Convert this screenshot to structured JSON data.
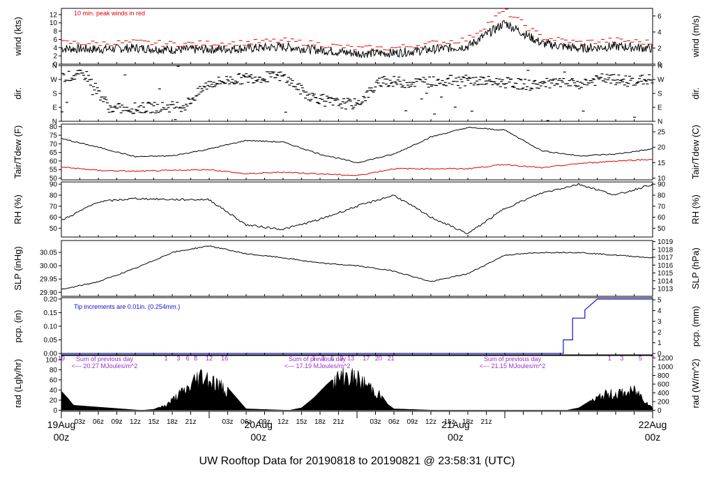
{
  "title": "UW Rooftop Data for 20190818  to  20190821 @ 23:58:31  (UTC)",
  "colors": {
    "title": "#1c1cd0",
    "red": "#e00000",
    "blue": "#1010d0",
    "purple": "#9a2fd0",
    "black": "#000000"
  },
  "xaxis": {
    "hours": [
      "03z",
      "06z",
      "09z",
      "12z",
      "15z",
      "18z",
      "21z",
      "03z",
      "06z",
      "09z",
      "12z",
      "15z",
      "18z",
      "21z",
      "03z",
      "06z",
      "09z",
      "12z",
      "15z",
      "18z",
      "21z"
    ],
    "day_labels": [
      "19Aug",
      "20Aug",
      "21Aug",
      "22Aug"
    ],
    "day_sub": [
      "00z",
      "00z",
      "00z",
      "00z"
    ]
  },
  "chart_data": [
    {
      "type": "line",
      "name": "wind",
      "ylabel_left": "wind (kts)",
      "ylabel_right": "wind (m/s)",
      "yticks_left": [
        "0",
        "2",
        "4",
        "6",
        "8",
        "10",
        "12"
      ],
      "yticks_right": [
        "0",
        "2",
        "4",
        "6"
      ],
      "annotation": "10 min. peak winds in red",
      "x_hours": [
        0,
        6,
        12,
        18,
        24,
        30,
        36,
        42,
        48,
        54,
        60,
        66,
        72,
        78,
        84,
        90,
        96
      ],
      "series": [
        {
          "values": [
            3.8,
            3.6,
            3.9,
            3.5,
            3.6,
            3.8,
            4.2,
            3.4,
            2.6,
            2.7,
            3.5,
            4.3,
            10,
            5.0,
            3.8,
            4.3,
            3.8
          ]
        },
        {
          "values": [
            5.2,
            5.0,
            5.3,
            4.9,
            5.0,
            5.2,
            5.7,
            4.8,
            3.8,
            3.9,
            5.0,
            6.0,
            13,
            6.5,
            5.2,
            5.8,
            5.2
          ]
        }
      ]
    },
    {
      "type": "scatter",
      "name": "dir",
      "ylabel_left": "dir.",
      "ylabel_right": "dir.",
      "yticks": [
        "N",
        "E",
        "S",
        "W",
        "N"
      ],
      "x_hours": [
        0,
        4,
        8,
        12,
        16,
        20,
        24,
        28,
        32,
        36,
        40,
        44,
        48,
        52,
        56,
        60,
        64,
        68,
        72,
        76,
        80,
        84,
        88,
        92,
        96
      ],
      "values": [
        285,
        300,
        80,
        85,
        90,
        100,
        245,
        270,
        285,
        290,
        170,
        120,
        110,
        260,
        250,
        255,
        265,
        260,
        250,
        235,
        245,
        240,
        275,
        260,
        270
      ]
    },
    {
      "type": "line",
      "name": "temp",
      "ylabel_left": "Tair/Tdew (F)",
      "ylabel_right": "Tair/Tdew (C)",
      "yticks_left": [
        "50",
        "55",
        "60",
        "65",
        "70",
        "75",
        "80"
      ],
      "yticks_right": [
        "10",
        "15",
        "20",
        "25"
      ],
      "x_hours": [
        0,
        6,
        12,
        18,
        24,
        30,
        36,
        42,
        48,
        54,
        60,
        66,
        72,
        78,
        84,
        90,
        96
      ],
      "series": [
        {
          "values": [
            73,
            68,
            62.5,
            63,
            67,
            72,
            71,
            64,
            59,
            64,
            74,
            79.5,
            78,
            66,
            63,
            64,
            67
          ]
        },
        {
          "values": [
            56.5,
            54.5,
            54,
            54.5,
            55,
            52.5,
            53.5,
            52.5,
            51.5,
            55.5,
            55.5,
            55.5,
            58,
            56,
            58.5,
            60,
            61
          ]
        }
      ]
    },
    {
      "type": "line",
      "name": "rh",
      "ylabel_left": "RH (%)",
      "ylabel_right": "RH (%)",
      "yticks_left": [
        "50",
        "60",
        "70",
        "80",
        "90"
      ],
      "yticks_right": [
        "50",
        "60",
        "70",
        "80",
        "90"
      ],
      "x_hours": [
        0,
        6,
        12,
        18,
        24,
        30,
        36,
        42,
        48,
        54,
        60,
        66,
        72,
        78,
        84,
        90,
        96
      ],
      "series": [
        {
          "values": [
            57,
            74,
            77,
            76,
            76,
            53,
            49,
            58,
            70,
            80,
            60,
            45,
            68,
            82,
            90,
            80,
            90
          ]
        }
      ]
    },
    {
      "type": "line",
      "name": "slp",
      "ylabel_left": "SLP (inHg)",
      "ylabel_right": "SLP (hPa)",
      "yticks_left": [
        "29.90",
        "29.95",
        "30.00",
        "30.05"
      ],
      "yticks_right": [
        "1013",
        "1014",
        "1015",
        "1016",
        "1017",
        "1018",
        "1019"
      ],
      "x_hours": [
        0,
        6,
        12,
        18,
        24,
        30,
        36,
        42,
        48,
        54,
        60,
        66,
        72,
        78,
        84,
        90,
        96
      ],
      "series": [
        {
          "values": [
            29.91,
            29.94,
            29.99,
            30.05,
            30.075,
            30.045,
            30.03,
            30.01,
            30.0,
            29.98,
            29.94,
            29.97,
            30.04,
            30.05,
            30.05,
            30.04,
            30.03
          ]
        }
      ]
    },
    {
      "type": "line",
      "name": "pcp",
      "ylabel_left": "pcp. (in)",
      "ylabel_right": "pcp. (mm)",
      "yticks_left": [
        "0.00",
        "0.05",
        "0.10",
        "0.15",
        "0.20"
      ],
      "yticks_right": [
        "0",
        "1",
        "2",
        "3",
        "4",
        "5"
      ],
      "annotation": "Tip increments are 0.01in. (0.254mm.)",
      "x_hours": [
        0,
        81.5,
        81.5,
        83,
        83,
        85,
        85,
        86,
        87,
        88,
        96
      ],
      "values": [
        0,
        0,
        0.05,
        0.05,
        0.13,
        0.13,
        0.16,
        0.18,
        0.2,
        0.2,
        0.2
      ]
    },
    {
      "type": "area",
      "name": "rad",
      "ylabel_left": "rad (Lgly/hr)",
      "ylabel_right": "rad (W/m^2)",
      "yticks_left": [
        "0",
        "20",
        "40",
        "60",
        "80",
        "100"
      ],
      "yticks_right": [
        "0",
        "200",
        "400",
        "600",
        "800",
        "1000",
        "1200"
      ],
      "notes": [
        {
          "label": "Sum of previous day",
          "value": "<--- 20.27 MJoules/m^2"
        },
        {
          "label": "Sum of previous day",
          "value": "<--- 17.19 MJoules/m^2"
        },
        {
          "label": "Sum of previous day",
          "value": "<--- 21.15 MJoules/m^2"
        }
      ],
      "hour_labels": [
        {
          "h": 0,
          "t": "19"
        },
        {
          "h": 17,
          "t": "1"
        },
        {
          "h": 19,
          "t": "3"
        },
        {
          "h": 20.5,
          "t": "6"
        },
        {
          "h": 21.8,
          "t": "8"
        },
        {
          "h": 24,
          "t": "12"
        },
        {
          "h": 26.5,
          "t": "16"
        },
        {
          "h": 41,
          "t": "1"
        },
        {
          "h": 42.5,
          "t": "3"
        },
        {
          "h": 44,
          "t": "6"
        },
        {
          "h": 45.5,
          "t": "9"
        },
        {
          "h": 47,
          "t": "13"
        },
        {
          "h": 49.5,
          "t": "17"
        },
        {
          "h": 51.5,
          "t": "20"
        },
        {
          "h": 53.5,
          "t": "21"
        },
        {
          "h": 89,
          "t": "1"
        },
        {
          "h": 91,
          "t": "3"
        },
        {
          "h": 94,
          "t": "5"
        },
        {
          "h": 96,
          "t": "7"
        }
      ],
      "x_hours": [
        0,
        1,
        2,
        13,
        15,
        17,
        19,
        21,
        22,
        23,
        24,
        25,
        27,
        30,
        37,
        39,
        41,
        43,
        45,
        46,
        47,
        48,
        50,
        52,
        53,
        54,
        61,
        63,
        65,
        67,
        69,
        71,
        72,
        73,
        74,
        75,
        77,
        79,
        82,
        84,
        86,
        88,
        90,
        92,
        93,
        94,
        95,
        96
      ],
      "values": [
        38,
        25,
        10,
        0,
        2,
        12,
        35,
        55,
        75,
        80,
        72,
        62,
        45,
        3,
        0,
        5,
        25,
        50,
        72,
        80,
        76,
        70,
        55,
        30,
        12,
        3,
        0,
        0,
        0,
        0,
        0,
        0,
        0,
        0,
        0,
        0,
        0,
        0,
        0,
        5,
        20,
        35,
        38,
        40,
        45,
        35,
        20,
        5
      ]
    }
  ]
}
